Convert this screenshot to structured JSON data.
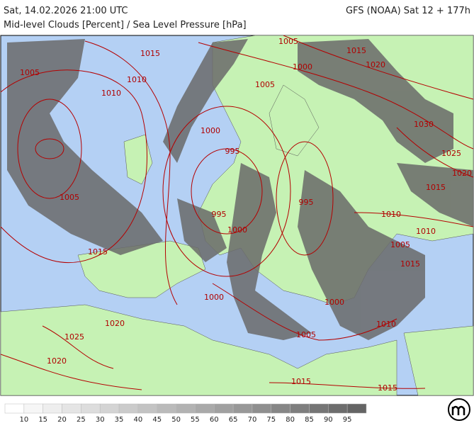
{
  "header": {
    "title": "Sat, 14.02.2026 21:00 UTC",
    "model": "GFS (NOAA) Sat 12 + 177h",
    "subtitle": "Mid-level Clouds [Percent] / Sea Level Pressure [hPa]"
  },
  "isobar_labels": [
    1015,
    1005,
    1015,
    1005,
    1010,
    1000,
    1005,
    1020,
    1010,
    1030,
    1000,
    995,
    1025,
    1020,
    1005,
    1015,
    995,
    1010,
    995,
    1000,
    1010,
    1015,
    1005,
    1015,
    1000,
    1000,
    1020,
    1005,
    1010,
    1025,
    1020,
    1015,
    1015
  ],
  "legend": {
    "ticks": [
      10,
      15,
      20,
      25,
      30,
      35,
      40,
      45,
      50,
      55,
      60,
      65,
      70,
      75,
      80,
      85,
      90,
      95
    ]
  }
}
